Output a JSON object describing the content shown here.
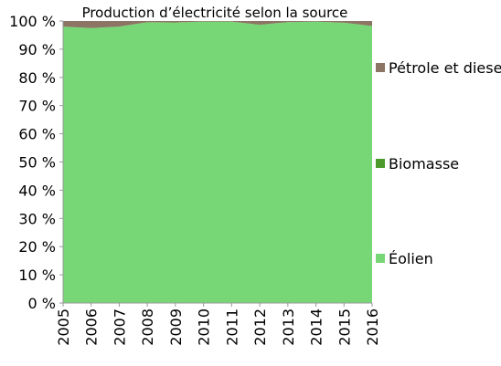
{
  "chart_data": {
    "type": "area",
    "stacked": true,
    "normalized": true,
    "title": "Production d’électricité selon la source",
    "x": [
      "2005",
      "2006",
      "2007",
      "2008",
      "2009",
      "2010",
      "2011",
      "2012",
      "2013",
      "2014",
      "2015",
      "2016"
    ],
    "ylim": [
      0,
      100
    ],
    "yticks": [
      0,
      10,
      20,
      30,
      40,
      50,
      60,
      70,
      80,
      90,
      100
    ],
    "ytick_labels": [
      "0 %",
      "10 %",
      "20 %",
      "30 %",
      "40 %",
      "50 %",
      "60 %",
      "70 %",
      "80 %",
      "90 %",
      "100 %"
    ],
    "legend_position": "right",
    "grid": false,
    "series": [
      {
        "name": "Éolien",
        "color": "#77d776",
        "values": [
          98,
          97.5,
          98,
          99.5,
          99.4,
          99.8,
          99.8,
          98.6,
          99.6,
          99.8,
          99.4,
          98.2
        ]
      },
      {
        "name": "Biomasse",
        "color": "#4f9a2c",
        "values": [
          0,
          0,
          0,
          0.1,
          0.1,
          0,
          0,
          0.1,
          0,
          0,
          0,
          0
        ]
      },
      {
        "name": "Pétrole et diesel",
        "color": "#8c7564",
        "values": [
          2,
          2.5,
          2,
          0.4,
          0.5,
          0.2,
          0.2,
          1.3,
          0.4,
          0.2,
          0.6,
          1.8
        ]
      }
    ]
  }
}
